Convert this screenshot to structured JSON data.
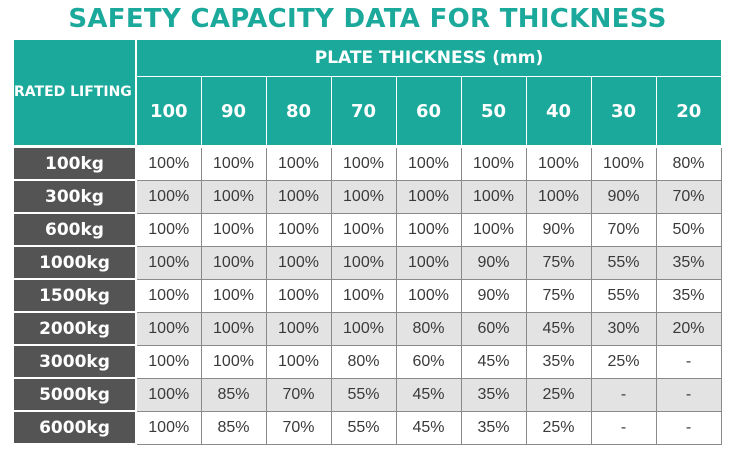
{
  "title": "SAFETY CAPACITY DATA FOR THICKNESS",
  "corner_header": "RATED LIFTING STRENGTH (%)",
  "group_header": "PLATE THICKNESS (mm)",
  "thicknesses": [
    "100",
    "90",
    "80",
    "70",
    "60",
    "50",
    "40",
    "30",
    "20"
  ],
  "rows": [
    {
      "weight": "100kg",
      "values": [
        "100%",
        "100%",
        "100%",
        "100%",
        "100%",
        "100%",
        "100%",
        "100%",
        "80%"
      ]
    },
    {
      "weight": "300kg",
      "values": [
        "100%",
        "100%",
        "100%",
        "100%",
        "100%",
        "100%",
        "100%",
        "90%",
        "70%"
      ]
    },
    {
      "weight": "600kg",
      "values": [
        "100%",
        "100%",
        "100%",
        "100%",
        "100%",
        "100%",
        "90%",
        "70%",
        "50%"
      ]
    },
    {
      "weight": "1000kg",
      "values": [
        "100%",
        "100%",
        "100%",
        "100%",
        "100%",
        "90%",
        "75%",
        "55%",
        "35%"
      ]
    },
    {
      "weight": "1500kg",
      "values": [
        "100%",
        "100%",
        "100%",
        "100%",
        "100%",
        "90%",
        "75%",
        "55%",
        "35%"
      ]
    },
    {
      "weight": "2000kg",
      "values": [
        "100%",
        "100%",
        "100%",
        "100%",
        "80%",
        "60%",
        "45%",
        "30%",
        "20%"
      ]
    },
    {
      "weight": "3000kg",
      "values": [
        "100%",
        "100%",
        "100%",
        "80%",
        "60%",
        "45%",
        "35%",
        "25%",
        "-"
      ]
    },
    {
      "weight": "5000kg",
      "values": [
        "100%",
        "85%",
        "70%",
        "55%",
        "45%",
        "35%",
        "25%",
        "-",
        "-"
      ]
    },
    {
      "weight": "6000kg",
      "values": [
        "100%",
        "85%",
        "70%",
        "55%",
        "45%",
        "35%",
        "25%",
        "-",
        "-"
      ]
    }
  ],
  "colors": {
    "accent": "#1ba99b",
    "row_header": "#545454",
    "row_alt": "#e3e3e3"
  }
}
